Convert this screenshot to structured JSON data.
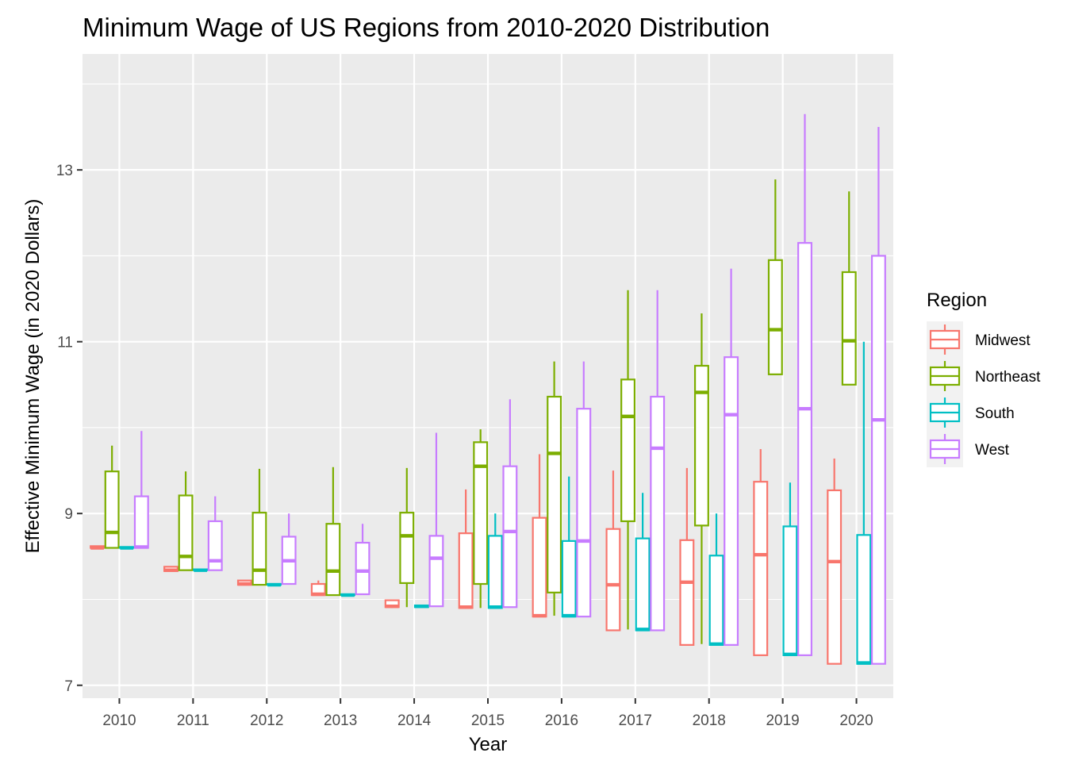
{
  "chart_data": {
    "type": "boxplot",
    "title": "Minimum Wage of US Regions from 2010-2020 Distribution",
    "xlabel": "Year",
    "ylabel": "Effective Minimum Wage (in 2020 Dollars)",
    "ylim": [
      6.85,
      14.35
    ],
    "y_ticks": [
      7,
      9,
      11,
      13
    ],
    "y_tick_labels": [
      "7",
      "9",
      "11",
      "13"
    ],
    "categories": [
      "2010",
      "2011",
      "2012",
      "2013",
      "2014",
      "2015",
      "2016",
      "2017",
      "2018",
      "2019",
      "2020"
    ],
    "legend": {
      "title": "Region",
      "position": "right"
    },
    "series": [
      {
        "name": "Midwest",
        "color": "#F8766D",
        "boxes": [
          {
            "min": 8.6,
            "q1": 8.6,
            "median": 8.6,
            "q3": 8.62,
            "max": 8.62
          },
          {
            "min": 8.33,
            "q1": 8.33,
            "median": 8.34,
            "q3": 8.38,
            "max": 8.38
          },
          {
            "min": 8.17,
            "q1": 8.17,
            "median": 8.18,
            "q3": 8.22,
            "max": 8.22
          },
          {
            "min": 8.05,
            "q1": 8.05,
            "median": 8.06,
            "q3": 8.18,
            "max": 8.22
          },
          {
            "min": 7.9,
            "q1": 7.91,
            "median": 7.92,
            "q3": 7.99,
            "max": 7.99
          },
          {
            "min": 7.89,
            "q1": 7.9,
            "median": 7.91,
            "q3": 8.77,
            "max": 9.28
          },
          {
            "min": 7.8,
            "q1": 7.8,
            "median": 7.81,
            "q3": 8.95,
            "max": 9.69
          },
          {
            "min": 7.64,
            "q1": 7.64,
            "median": 8.17,
            "q3": 8.82,
            "max": 9.5
          },
          {
            "min": 7.47,
            "q1": 7.47,
            "median": 8.2,
            "q3": 8.69,
            "max": 9.53
          },
          {
            "min": 7.35,
            "q1": 7.35,
            "median": 8.52,
            "q3": 9.37,
            "max": 9.75
          },
          {
            "min": 7.25,
            "q1": 7.25,
            "median": 8.44,
            "q3": 9.27,
            "max": 9.64
          }
        ]
      },
      {
        "name": "Northeast",
        "color": "#7CAE00",
        "boxes": [
          {
            "min": 8.6,
            "q1": 8.6,
            "median": 8.78,
            "q3": 9.49,
            "max": 9.79
          },
          {
            "min": 8.34,
            "q1": 8.34,
            "median": 8.5,
            "q3": 9.21,
            "max": 9.49
          },
          {
            "min": 8.17,
            "q1": 8.17,
            "median": 8.34,
            "q3": 9.01,
            "max": 9.52
          },
          {
            "min": 8.05,
            "q1": 8.05,
            "median": 8.33,
            "q3": 8.88,
            "max": 9.54
          },
          {
            "min": 7.91,
            "q1": 8.19,
            "median": 8.74,
            "q3": 9.01,
            "max": 9.53
          },
          {
            "min": 7.9,
            "q1": 8.18,
            "median": 9.55,
            "q3": 9.83,
            "max": 9.98
          },
          {
            "min": 7.81,
            "q1": 8.08,
            "median": 9.7,
            "q3": 10.36,
            "max": 10.77
          },
          {
            "min": 7.65,
            "q1": 8.91,
            "median": 10.13,
            "q3": 10.56,
            "max": 11.6
          },
          {
            "min": 7.48,
            "q1": 8.86,
            "median": 10.41,
            "q3": 10.72,
            "max": 11.33
          },
          {
            "min": 10.62,
            "q1": 10.62,
            "median": 11.14,
            "q3": 11.95,
            "max": 12.89
          },
          {
            "min": 10.5,
            "q1": 10.5,
            "median": 11.01,
            "q3": 11.81,
            "max": 12.75
          }
        ]
      },
      {
        "name": "South",
        "color": "#00BFC4",
        "boxes": [
          {
            "min": 8.6,
            "q1": 8.6,
            "median": 8.6,
            "q3": 8.61,
            "max": 8.61
          },
          {
            "min": 8.34,
            "q1": 8.34,
            "median": 8.34,
            "q3": 8.35,
            "max": 8.35
          },
          {
            "min": 8.17,
            "q1": 8.17,
            "median": 8.17,
            "q3": 8.18,
            "max": 8.18
          },
          {
            "min": 8.05,
            "q1": 8.05,
            "median": 8.05,
            "q3": 8.06,
            "max": 8.06
          },
          {
            "min": 7.91,
            "q1": 7.91,
            "median": 7.92,
            "q3": 7.93,
            "max": 7.93
          },
          {
            "min": 7.9,
            "q1": 7.9,
            "median": 7.91,
            "q3": 8.74,
            "max": 9.0
          },
          {
            "min": 7.8,
            "q1": 7.8,
            "median": 7.81,
            "q3": 8.68,
            "max": 9.43
          },
          {
            "min": 7.64,
            "q1": 7.64,
            "median": 7.65,
            "q3": 8.71,
            "max": 9.24
          },
          {
            "min": 7.47,
            "q1": 7.47,
            "median": 7.48,
            "q3": 8.51,
            "max": 9.0
          },
          {
            "min": 7.35,
            "q1": 7.35,
            "median": 7.36,
            "q3": 8.85,
            "max": 9.36
          },
          {
            "min": 7.25,
            "q1": 7.25,
            "median": 7.26,
            "q3": 8.75,
            "max": 11.0
          }
        ]
      },
      {
        "name": "West",
        "color": "#C77CFF",
        "boxes": [
          {
            "min": 8.6,
            "q1": 8.6,
            "median": 8.61,
            "q3": 9.2,
            "max": 9.96
          },
          {
            "min": 8.34,
            "q1": 8.34,
            "median": 8.45,
            "q3": 8.91,
            "max": 9.2
          },
          {
            "min": 8.18,
            "q1": 8.18,
            "median": 8.45,
            "q3": 8.73,
            "max": 9.0
          },
          {
            "min": 8.06,
            "q1": 8.06,
            "median": 8.33,
            "q3": 8.66,
            "max": 8.88
          },
          {
            "min": 7.92,
            "q1": 7.92,
            "median": 8.48,
            "q3": 8.74,
            "max": 9.94
          },
          {
            "min": 7.91,
            "q1": 7.91,
            "median": 8.79,
            "q3": 9.55,
            "max": 10.33
          },
          {
            "min": 7.8,
            "q1": 7.8,
            "median": 8.68,
            "q3": 10.22,
            "max": 10.77
          },
          {
            "min": 7.64,
            "q1": 7.64,
            "median": 9.76,
            "q3": 10.36,
            "max": 11.6
          },
          {
            "min": 7.47,
            "q1": 7.47,
            "median": 10.15,
            "q3": 10.82,
            "max": 11.85
          },
          {
            "min": 7.35,
            "q1": 7.35,
            "median": 10.22,
            "q3": 12.15,
            "max": 13.65
          },
          {
            "min": 7.25,
            "q1": 7.25,
            "median": 10.09,
            "q3": 12.0,
            "max": 13.5
          }
        ]
      }
    ]
  }
}
